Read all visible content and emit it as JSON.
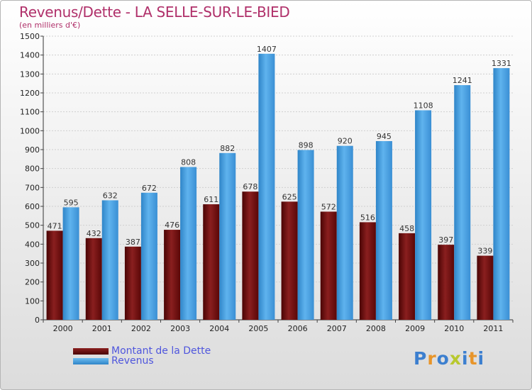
{
  "page": {
    "title": "Revenus/Dette - LA SELLE-SUR-LE-BIED",
    "subtitle": "(en milliers d'€)"
  },
  "legend": [
    {
      "label": "Montant de la Dette",
      "color": "#6b0b0b"
    },
    {
      "label": "Revenus",
      "color": "#4aa3e4"
    }
  ],
  "logo": {
    "text": "Proxiti",
    "letters": [
      "P",
      "r",
      "o",
      "x",
      "i",
      "t",
      "i"
    ],
    "colors": [
      "#3c7fcf",
      "#e8952a",
      "#3c7fcf",
      "#b8c82e",
      "#3c7fcf",
      "#e8952a",
      "#3c7fcf"
    ]
  },
  "chart_data": {
    "type": "bar",
    "title": "Revenus/Dette - LA SELLE-SUR-LE-BIED",
    "ylabel": "(en milliers d'€)",
    "xlabel": "",
    "categories": [
      "2000",
      "2001",
      "2002",
      "2003",
      "2004",
      "2005",
      "2006",
      "2007",
      "2008",
      "2009",
      "2010",
      "2011"
    ],
    "series": [
      {
        "name": "Montant de la Dette",
        "color": "#6b0b0b",
        "values": [
          471,
          432,
          387,
          476,
          611,
          678,
          625,
          572,
          516,
          458,
          397,
          339
        ]
      },
      {
        "name": "Revenus",
        "color": "#4aa3e4",
        "values": [
          595,
          632,
          672,
          808,
          882,
          1407,
          898,
          920,
          945,
          1108,
          1241,
          1331
        ]
      }
    ],
    "ylim": [
      0,
      1500
    ],
    "yticks": [
      0,
      100,
      200,
      300,
      400,
      500,
      600,
      700,
      800,
      900,
      1000,
      1100,
      1200,
      1300,
      1400,
      1500
    ],
    "grid": true,
    "legend_position": "bottom-left"
  }
}
